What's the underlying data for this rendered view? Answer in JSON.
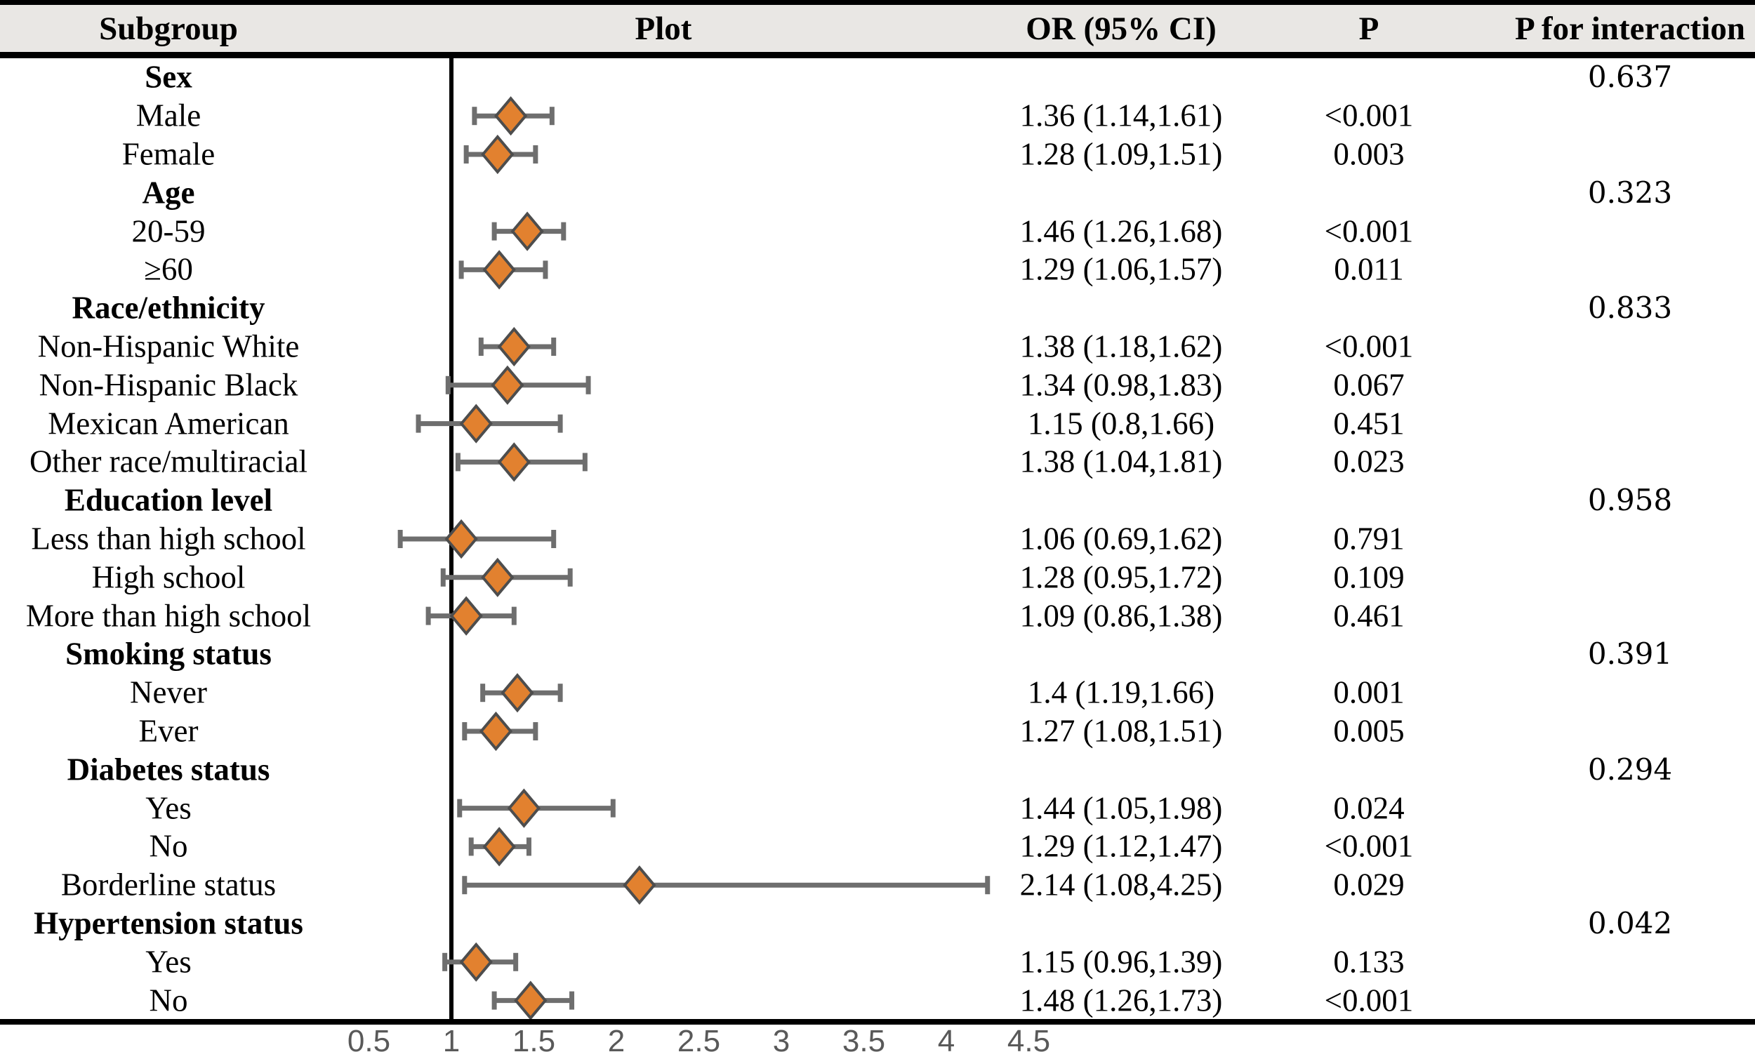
{
  "figure": {
    "kind": "forest-plot-table",
    "colors": {
      "header_band_bg": "#e9e7e4",
      "rule_black": "#000000",
      "diamond_fill": "#e2812f",
      "diamond_outline": "#4d4d4d",
      "ci_bar": "#6e6e6e",
      "tick_label": "#595959"
    }
  },
  "chart_data": {
    "type": "forest",
    "columns": [
      "Subgroup",
      "Plot",
      "OR (95% CI)",
      "P",
      "P for interaction"
    ],
    "or_axis": {
      "scale": "linear",
      "reference_line": 1,
      "ticks": [
        0.5,
        1,
        1.5,
        2,
        2.5,
        3,
        3.5,
        4,
        4.5
      ],
      "tick_labels": [
        "0.5",
        "1",
        "1.5",
        "2",
        "2.5",
        "3",
        "3.5",
        "4",
        "4.5"
      ],
      "range": [
        0.3,
        4.9
      ]
    },
    "legend": "none",
    "rows": [
      {
        "label": "Sex",
        "group": true,
        "p_interaction": "0.637"
      },
      {
        "label": "Male",
        "or": 1.36,
        "ci_low": 1.14,
        "ci_high": 1.61,
        "or_ci": "1.36 (1.14,1.61)",
        "p": "<0.001"
      },
      {
        "label": "Female",
        "or": 1.28,
        "ci_low": 1.09,
        "ci_high": 1.51,
        "or_ci": "1.28 (1.09,1.51)",
        "p": "0.003"
      },
      {
        "label": "Age",
        "group": true,
        "p_interaction": "0.323"
      },
      {
        "label": "20-59",
        "or": 1.46,
        "ci_low": 1.26,
        "ci_high": 1.68,
        "or_ci": "1.46 (1.26,1.68)",
        "p": "<0.001"
      },
      {
        "label": "≥60",
        "or": 1.29,
        "ci_low": 1.06,
        "ci_high": 1.57,
        "or_ci": "1.29 (1.06,1.57)",
        "p": "0.011"
      },
      {
        "label": "Race/ethnicity",
        "group": true,
        "p_interaction": "0.833"
      },
      {
        "label": "Non-Hispanic White",
        "or": 1.38,
        "ci_low": 1.18,
        "ci_high": 1.62,
        "or_ci": "1.38 (1.18,1.62)",
        "p": "<0.001"
      },
      {
        "label": "Non-Hispanic Black",
        "or": 1.34,
        "ci_low": 0.98,
        "ci_high": 1.83,
        "or_ci": "1.34 (0.98,1.83)",
        "p": "0.067"
      },
      {
        "label": "Mexican American",
        "or": 1.15,
        "ci_low": 0.8,
        "ci_high": 1.66,
        "or_ci": "1.15 (0.8,1.66)",
        "p": "0.451"
      },
      {
        "label": "Other race/multiracial",
        "or": 1.38,
        "ci_low": 1.04,
        "ci_high": 1.81,
        "or_ci": "1.38 (1.04,1.81)",
        "p": "0.023"
      },
      {
        "label": "Education level",
        "group": true,
        "p_interaction": "0.958"
      },
      {
        "label": "Less than high school",
        "or": 1.06,
        "ci_low": 0.69,
        "ci_high": 1.62,
        "or_ci": "1.06 (0.69,1.62)",
        "p": "0.791"
      },
      {
        "label": "High school",
        "or": 1.28,
        "ci_low": 0.95,
        "ci_high": 1.72,
        "or_ci": "1.28 (0.95,1.72)",
        "p": "0.109"
      },
      {
        "label": "More than high school",
        "or": 1.09,
        "ci_low": 0.86,
        "ci_high": 1.38,
        "or_ci": "1.09 (0.86,1.38)",
        "p": "0.461"
      },
      {
        "label": "Smoking status",
        "group": true,
        "p_interaction": "0.391"
      },
      {
        "label": "Never",
        "or": 1.4,
        "ci_low": 1.19,
        "ci_high": 1.66,
        "or_ci": "1.4 (1.19,1.66)",
        "p": "0.001"
      },
      {
        "label": "Ever",
        "or": 1.27,
        "ci_low": 1.08,
        "ci_high": 1.51,
        "or_ci": "1.27 (1.08,1.51)",
        "p": "0.005"
      },
      {
        "label": "Diabetes status",
        "group": true,
        "p_interaction": "0.294"
      },
      {
        "label": "Yes",
        "or": 1.44,
        "ci_low": 1.05,
        "ci_high": 1.98,
        "or_ci": "1.44 (1.05,1.98)",
        "p": "0.024"
      },
      {
        "label": "No",
        "or": 1.29,
        "ci_low": 1.12,
        "ci_high": 1.47,
        "or_ci": "1.29 (1.12,1.47)",
        "p": "<0.001"
      },
      {
        "label": "Borderline status",
        "or": 2.14,
        "ci_low": 1.08,
        "ci_high": 4.25,
        "or_ci": "2.14 (1.08,4.25)",
        "p": "0.029"
      },
      {
        "label": "Hypertension status",
        "group": true,
        "p_interaction": "0.042"
      },
      {
        "label": "Yes",
        "or": 1.15,
        "ci_low": 0.96,
        "ci_high": 1.39,
        "or_ci": "1.15 (0.96,1.39)",
        "p": "0.133"
      },
      {
        "label": "No",
        "or": 1.48,
        "ci_low": 1.26,
        "ci_high": 1.73,
        "or_ci": "1.48 (1.26,1.73)",
        "p": "<0.001"
      }
    ]
  }
}
